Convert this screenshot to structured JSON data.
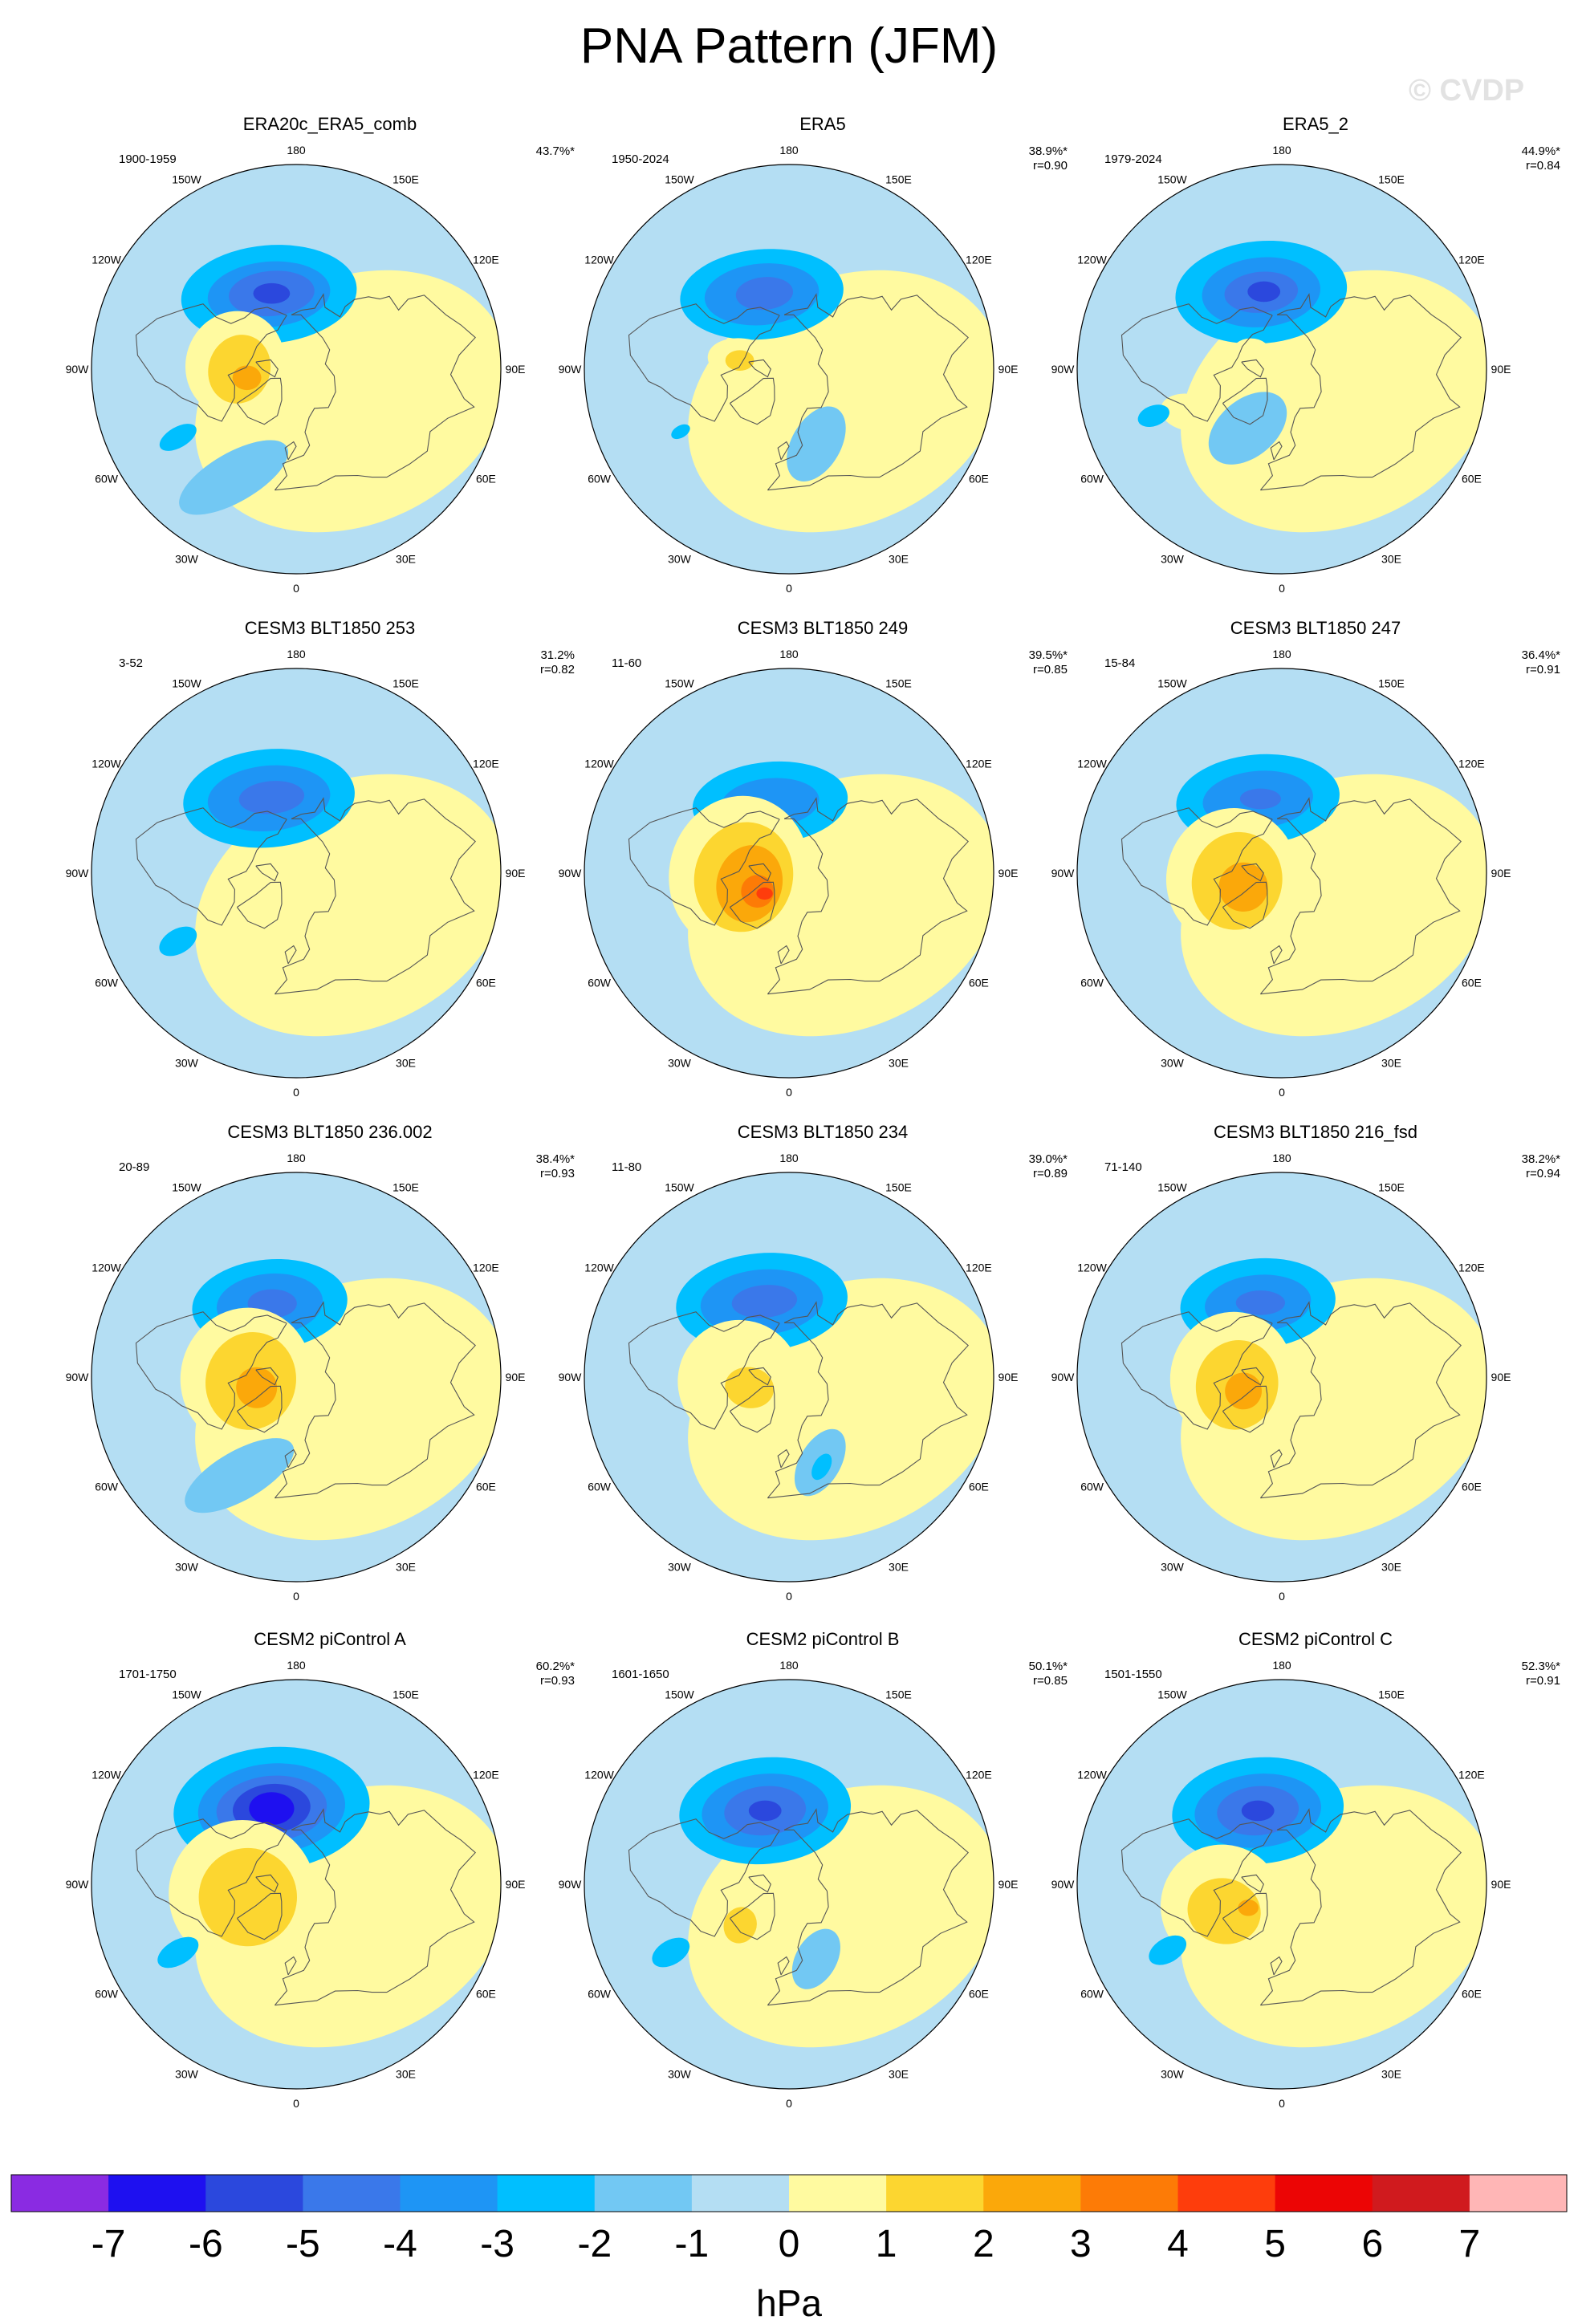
{
  "title": "PNA Pattern (JFM)",
  "watermark": "© CVDP",
  "lon_labels": [
    "180",
    "150E",
    "120E",
    "90E",
    "60E",
    "30E",
    "0",
    "30W",
    "60W",
    "90W",
    "120W",
    "150W"
  ],
  "panels": [
    {
      "title": "ERA20c_ERA5_comb",
      "years": "1900-1959",
      "stats": "43.7%*",
      "blobs": [
        {
          "value": -2,
          "lon": 200,
          "lat": 55,
          "rx": 0.43,
          "ry": 0.24,
          "rot": -5
        },
        {
          "value": -3,
          "lon": 200,
          "lat": 55,
          "rx": 0.3,
          "ry": 0.16,
          "rot": -5
        },
        {
          "value": -4,
          "lon": 198,
          "lat": 55,
          "rx": 0.21,
          "ry": 0.11,
          "rot": -5
        },
        {
          "value": -5,
          "lon": 198,
          "lat": 55,
          "rx": 0.09,
          "ry": 0.05,
          "rot": 0
        },
        {
          "value": 1,
          "lon": 265,
          "lat": 63,
          "rx": 0.24,
          "ry": 0.26,
          "rot": 20
        },
        {
          "value": 2,
          "lon": 270,
          "lat": 65,
          "rx": 0.15,
          "ry": 0.17,
          "rot": 20
        },
        {
          "value": 3,
          "lon": 280,
          "lat": 68,
          "rx": 0.07,
          "ry": 0.06,
          "rot": 0
        },
        {
          "value": -1,
          "lon": 330,
          "lat": 35,
          "rx": 0.3,
          "ry": 0.12,
          "rot": -30
        },
        {
          "value": -2,
          "lon": 300,
          "lat": 30,
          "rx": 0.1,
          "ry": 0.05,
          "rot": -30
        }
      ]
    },
    {
      "title": "ERA5",
      "years": "1950-2024",
      "stats": "38.9%*\nr=0.90",
      "blobs": [
        {
          "value": -2,
          "lon": 200,
          "lat": 55,
          "rx": 0.4,
          "ry": 0.22,
          "rot": -5
        },
        {
          "value": -3,
          "lon": 200,
          "lat": 55,
          "rx": 0.28,
          "ry": 0.15,
          "rot": -5
        },
        {
          "value": -4,
          "lon": 198,
          "lat": 55,
          "rx": 0.14,
          "ry": 0.08,
          "rot": -5
        },
        {
          "value": 1,
          "lon": 260,
          "lat": 70,
          "rx": 0.18,
          "ry": 0.11,
          "rot": 10
        },
        {
          "value": 2,
          "lon": 260,
          "lat": 68,
          "rx": 0.07,
          "ry": 0.05,
          "rot": 0
        },
        {
          "value": -1,
          "lon": 20,
          "lat": 55,
          "rx": 0.2,
          "ry": 0.12,
          "rot": -60
        },
        {
          "value": -2,
          "lon": 300,
          "lat": 35,
          "rx": 0.05,
          "ry": 0.03,
          "rot": -30
        }
      ]
    },
    {
      "title": "ERA5_2",
      "years": "1979-2024",
      "stats": "44.9%*\nr=0.84",
      "blobs": [
        {
          "value": -2,
          "lon": 195,
          "lat": 55,
          "rx": 0.42,
          "ry": 0.25,
          "rot": -5
        },
        {
          "value": -3,
          "lon": 195,
          "lat": 55,
          "rx": 0.29,
          "ry": 0.17,
          "rot": -5
        },
        {
          "value": -4,
          "lon": 195,
          "lat": 55,
          "rx": 0.18,
          "ry": 0.1,
          "rot": -5
        },
        {
          "value": -5,
          "lon": 193,
          "lat": 55,
          "rx": 0.08,
          "ry": 0.05,
          "rot": 0
        },
        {
          "value": 1,
          "lon": 245,
          "lat": 75,
          "rx": 0.1,
          "ry": 0.08,
          "rot": 0
        },
        {
          "value": 1,
          "lon": 295,
          "lat": 45,
          "rx": 0.14,
          "ry": 0.09,
          "rot": 10
        },
        {
          "value": -1,
          "lon": 330,
          "lat": 60,
          "rx": 0.22,
          "ry": 0.14,
          "rot": -40
        },
        {
          "value": -2,
          "lon": 290,
          "lat": 30,
          "rx": 0.08,
          "ry": 0.05,
          "rot": -20
        }
      ]
    },
    {
      "title": "CESM3 BLT1850 253",
      "years": "3-52",
      "stats": "31.2%\nr=0.82",
      "blobs": [
        {
          "value": -2,
          "lon": 200,
          "lat": 55,
          "rx": 0.42,
          "ry": 0.24,
          "rot": -5
        },
        {
          "value": -3,
          "lon": 200,
          "lat": 55,
          "rx": 0.3,
          "ry": 0.16,
          "rot": -5
        },
        {
          "value": -4,
          "lon": 198,
          "lat": 55,
          "rx": 0.16,
          "ry": 0.08,
          "rot": -5
        },
        {
          "value": 1,
          "lon": 280,
          "lat": 72,
          "rx": 0.14,
          "ry": 0.1,
          "rot": 0
        },
        {
          "value": 1,
          "lon": 330,
          "lat": 40,
          "rx": 0.06,
          "ry": 0.05,
          "rot": 0
        },
        {
          "value": -2,
          "lon": 300,
          "lat": 30,
          "rx": 0.1,
          "ry": 0.06,
          "rot": -30
        }
      ]
    },
    {
      "title": "CESM3 BLT1850 249",
      "years": "11-60",
      "stats": "39.5%*\nr=0.85",
      "blobs": [
        {
          "value": -2,
          "lon": 195,
          "lat": 58,
          "rx": 0.38,
          "ry": 0.2,
          "rot": -5
        },
        {
          "value": -3,
          "lon": 195,
          "lat": 58,
          "rx": 0.24,
          "ry": 0.12,
          "rot": -5
        },
        {
          "value": 1,
          "lon": 270,
          "lat": 68,
          "rx": 0.34,
          "ry": 0.38,
          "rot": 15
        },
        {
          "value": 2,
          "lon": 275,
          "lat": 70,
          "rx": 0.24,
          "ry": 0.27,
          "rot": 15
        },
        {
          "value": 3,
          "lon": 285,
          "lat": 72,
          "rx": 0.16,
          "ry": 0.19,
          "rot": 15
        },
        {
          "value": 4,
          "lon": 300,
          "lat": 74,
          "rx": 0.08,
          "ry": 0.08,
          "rot": 0
        },
        {
          "value": 5,
          "lon": 310,
          "lat": 76,
          "rx": 0.04,
          "ry": 0.03,
          "rot": 0
        }
      ]
    },
    {
      "title": "CESM3 BLT1850 247",
      "years": "15-84",
      "stats": "36.4%*\nr=0.91",
      "blobs": [
        {
          "value": -2,
          "lon": 198,
          "lat": 56,
          "rx": 0.4,
          "ry": 0.22,
          "rot": -5
        },
        {
          "value": -3,
          "lon": 198,
          "lat": 56,
          "rx": 0.27,
          "ry": 0.14,
          "rot": -5
        },
        {
          "value": -4,
          "lon": 196,
          "lat": 56,
          "rx": 0.1,
          "ry": 0.05,
          "rot": 0
        },
        {
          "value": 1,
          "lon": 275,
          "lat": 68,
          "rx": 0.32,
          "ry": 0.34,
          "rot": 15
        },
        {
          "value": 2,
          "lon": 280,
          "lat": 70,
          "rx": 0.22,
          "ry": 0.24,
          "rot": 15
        },
        {
          "value": 3,
          "lon": 290,
          "lat": 72,
          "rx": 0.12,
          "ry": 0.12,
          "rot": 10
        }
      ]
    },
    {
      "title": "CESM3 BLT1850 236.002",
      "years": "20-89",
      "stats": "38.4%*\nr=0.93",
      "blobs": [
        {
          "value": -2,
          "lon": 200,
          "lat": 56,
          "rx": 0.38,
          "ry": 0.22,
          "rot": -5
        },
        {
          "value": -3,
          "lon": 200,
          "lat": 56,
          "rx": 0.26,
          "ry": 0.15,
          "rot": -5
        },
        {
          "value": -4,
          "lon": 198,
          "lat": 56,
          "rx": 0.12,
          "ry": 0.07,
          "rot": 0
        },
        {
          "value": 1,
          "lon": 270,
          "lat": 68,
          "rx": 0.32,
          "ry": 0.34,
          "rot": 15
        },
        {
          "value": 2,
          "lon": 275,
          "lat": 70,
          "rx": 0.22,
          "ry": 0.24,
          "rot": 15
        },
        {
          "value": 3,
          "lon": 285,
          "lat": 72,
          "rx": 0.1,
          "ry": 0.1,
          "rot": 10
        },
        {
          "value": -1,
          "lon": 330,
          "lat": 40,
          "rx": 0.3,
          "ry": 0.12,
          "rot": -30
        }
      ]
    },
    {
      "title": "CESM3 BLT1850 234",
      "years": "11-80",
      "stats": "39.0%*\nr=0.89",
      "blobs": [
        {
          "value": -2,
          "lon": 200,
          "lat": 55,
          "rx": 0.42,
          "ry": 0.24,
          "rot": -5
        },
        {
          "value": -3,
          "lon": 200,
          "lat": 55,
          "rx": 0.3,
          "ry": 0.16,
          "rot": -5
        },
        {
          "value": -4,
          "lon": 198,
          "lat": 55,
          "rx": 0.16,
          "ry": 0.08,
          "rot": -5
        },
        {
          "value": 1,
          "lon": 275,
          "lat": 68,
          "rx": 0.3,
          "ry": 0.3,
          "rot": 15
        },
        {
          "value": 2,
          "lon": 285,
          "lat": 72,
          "rx": 0.12,
          "ry": 0.1,
          "rot": 10
        },
        {
          "value": -1,
          "lon": 20,
          "lat": 50,
          "rx": 0.18,
          "ry": 0.1,
          "rot": -60
        },
        {
          "value": -2,
          "lon": 20,
          "lat": 48,
          "rx": 0.07,
          "ry": 0.04,
          "rot": -60
        }
      ]
    },
    {
      "title": "CESM3 BLT1850 216_fsd",
      "years": "71-140",
      "stats": "38.2%*\nr=0.94",
      "blobs": [
        {
          "value": -2,
          "lon": 198,
          "lat": 56,
          "rx": 0.38,
          "ry": 0.22,
          "rot": -5
        },
        {
          "value": -3,
          "lon": 198,
          "lat": 56,
          "rx": 0.26,
          "ry": 0.14,
          "rot": -5
        },
        {
          "value": -4,
          "lon": 196,
          "lat": 56,
          "rx": 0.12,
          "ry": 0.06,
          "rot": 0
        },
        {
          "value": 1,
          "lon": 270,
          "lat": 68,
          "rx": 0.3,
          "ry": 0.32,
          "rot": 15
        },
        {
          "value": 2,
          "lon": 280,
          "lat": 70,
          "rx": 0.2,
          "ry": 0.22,
          "rot": 15
        },
        {
          "value": 3,
          "lon": 290,
          "lat": 72,
          "rx": 0.09,
          "ry": 0.09,
          "rot": 10
        }
      ]
    },
    {
      "title": "CESM2 piControl A",
      "years": "1701-1750",
      "stats": "60.2%*\nr=0.93",
      "blobs": [
        {
          "value": -2,
          "lon": 198,
          "lat": 55,
          "rx": 0.48,
          "ry": 0.3,
          "rot": -5
        },
        {
          "value": -3,
          "lon": 198,
          "lat": 55,
          "rx": 0.36,
          "ry": 0.22,
          "rot": -5
        },
        {
          "value": -4,
          "lon": 198,
          "lat": 55,
          "rx": 0.27,
          "ry": 0.16,
          "rot": -5
        },
        {
          "value": -5,
          "lon": 198,
          "lat": 55,
          "rx": 0.19,
          "ry": 0.12,
          "rot": -5
        },
        {
          "value": -6,
          "lon": 198,
          "lat": 55,
          "rx": 0.11,
          "ry": 0.08,
          "rot": 0
        },
        {
          "value": 1,
          "lon": 280,
          "lat": 66,
          "rx": 0.36,
          "ry": 0.36,
          "rot": 15
        },
        {
          "value": 2,
          "lon": 285,
          "lat": 68,
          "rx": 0.24,
          "ry": 0.24,
          "rot": 15
        },
        {
          "value": -2,
          "lon": 300,
          "lat": 30,
          "rx": 0.11,
          "ry": 0.06,
          "rot": -30
        }
      ]
    },
    {
      "title": "CESM2 piControl B",
      "years": "1601-1650",
      "stats": "50.1%*\nr=0.85",
      "blobs": [
        {
          "value": -2,
          "lon": 198,
          "lat": 56,
          "rx": 0.42,
          "ry": 0.26,
          "rot": -5
        },
        {
          "value": -3,
          "lon": 198,
          "lat": 56,
          "rx": 0.31,
          "ry": 0.18,
          "rot": -5
        },
        {
          "value": -4,
          "lon": 198,
          "lat": 56,
          "rx": 0.2,
          "ry": 0.12,
          "rot": -5
        },
        {
          "value": -5,
          "lon": 198,
          "lat": 56,
          "rx": 0.08,
          "ry": 0.05,
          "rot": 0
        },
        {
          "value": 1,
          "lon": 310,
          "lat": 65,
          "rx": 0.18,
          "ry": 0.22,
          "rot": 20
        },
        {
          "value": 2,
          "lon": 310,
          "lat": 62,
          "rx": 0.08,
          "ry": 0.09,
          "rot": 20
        },
        {
          "value": -1,
          "lon": 20,
          "lat": 55,
          "rx": 0.16,
          "ry": 0.1,
          "rot": -60
        },
        {
          "value": -2,
          "lon": 300,
          "lat": 30,
          "rx": 0.1,
          "ry": 0.06,
          "rot": -30
        }
      ]
    },
    {
      "title": "CESM2 piControl C",
      "years": "1501-1550",
      "stats": "52.3%*\nr=0.91",
      "blobs": [
        {
          "value": -2,
          "lon": 198,
          "lat": 56,
          "rx": 0.42,
          "ry": 0.26,
          "rot": -5
        },
        {
          "value": -3,
          "lon": 198,
          "lat": 56,
          "rx": 0.31,
          "ry": 0.18,
          "rot": -5
        },
        {
          "value": -4,
          "lon": 198,
          "lat": 56,
          "rx": 0.2,
          "ry": 0.12,
          "rot": -5
        },
        {
          "value": -5,
          "lon": 198,
          "lat": 56,
          "rx": 0.08,
          "ry": 0.05,
          "rot": 0
        },
        {
          "value": 1,
          "lon": 290,
          "lat": 62,
          "rx": 0.3,
          "ry": 0.3,
          "rot": 15
        },
        {
          "value": 2,
          "lon": 295,
          "lat": 62,
          "rx": 0.18,
          "ry": 0.16,
          "rot": 15
        },
        {
          "value": 3,
          "lon": 305,
          "lat": 72,
          "rx": 0.05,
          "ry": 0.04,
          "rot": 0
        },
        {
          "value": -2,
          "lon": 300,
          "lat": 32,
          "rx": 0.1,
          "ry": 0.06,
          "rot": -30
        }
      ]
    }
  ],
  "colorbar": {
    "unit": "hPa",
    "ticks": [
      "-7",
      "-6",
      "-5",
      "-4",
      "-3",
      "-2",
      "-1",
      "0",
      "1",
      "2",
      "3",
      "4",
      "5",
      "6",
      "7"
    ],
    "colors": [
      "#8a2be2",
      "#1e10f0",
      "#2b48dd",
      "#3a78ea",
      "#1e95f5",
      "#00bfff",
      "#72c8f3",
      "#b4def3",
      "#fffaa0",
      "#fcd630",
      "#fba80a",
      "#fd7b06",
      "#fe3d0c",
      "#ec0505",
      "#d01a1e",
      "#ffb6b6"
    ]
  }
}
